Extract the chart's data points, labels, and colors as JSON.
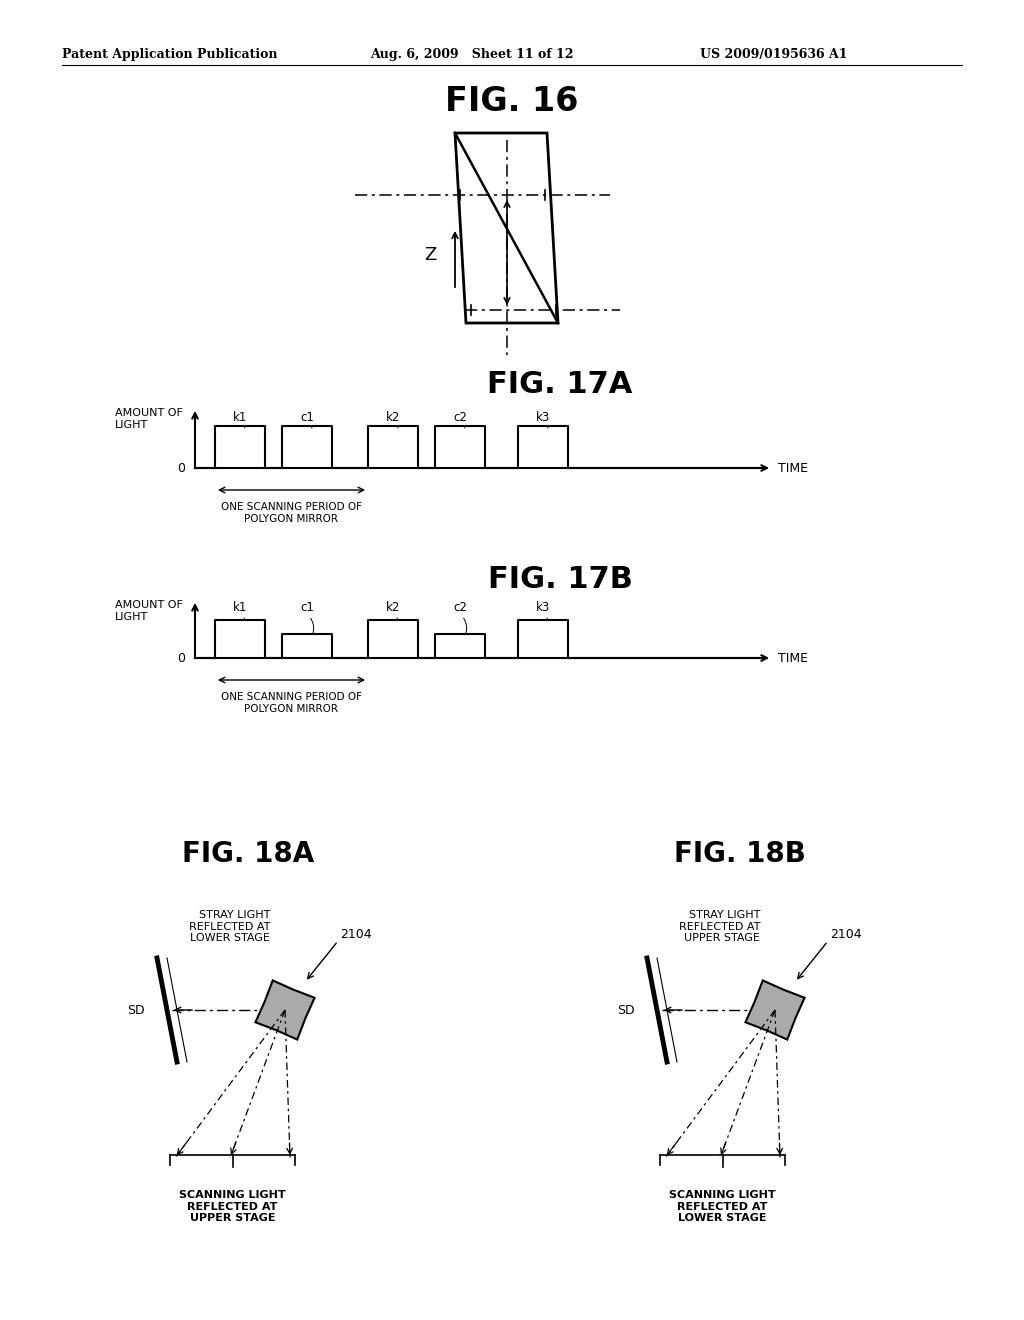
{
  "bg_color": "#ffffff",
  "header_left": "Patent Application Publication",
  "header_mid": "Aug. 6, 2009   Sheet 11 of 12",
  "header_right": "US 2009/0195636 A1",
  "fig16_title": "FIG. 16",
  "fig17a_title": "FIG. 17A",
  "fig17b_title": "FIG. 17B",
  "fig18a_title": "FIG. 18A",
  "fig18b_title": "FIG. 18B",
  "amount_of_light": "AMOUNT OF\nLIGHT",
  "time_label": "TIME",
  "zero_label": "0",
  "z_label": "Z",
  "one_scan_period": "ONE SCANNING PERIOD OF\nPOLYGON MIRROR",
  "pulse_labels_17a": [
    "k1",
    "c1",
    "k2",
    "c2",
    "k3"
  ],
  "pulse_labels_17b": [
    "k1",
    "c1",
    "k2",
    "c2",
    "k3"
  ],
  "stray_light_lower": "STRAY LIGHT\nREFLECTED AT\nLOWER STAGE",
  "stray_light_upper": "STRAY LIGHT\nREFLECTED AT\nUPPER STAGE",
  "label_2104": "2104",
  "sd_label": "SD",
  "scanning_upper": "SCANNING LIGHT\nREFLECTED AT\nUPPER STAGE",
  "scanning_lower": "SCANNING LIGHT\nREFLECTED AT\nLOWER STAGE"
}
